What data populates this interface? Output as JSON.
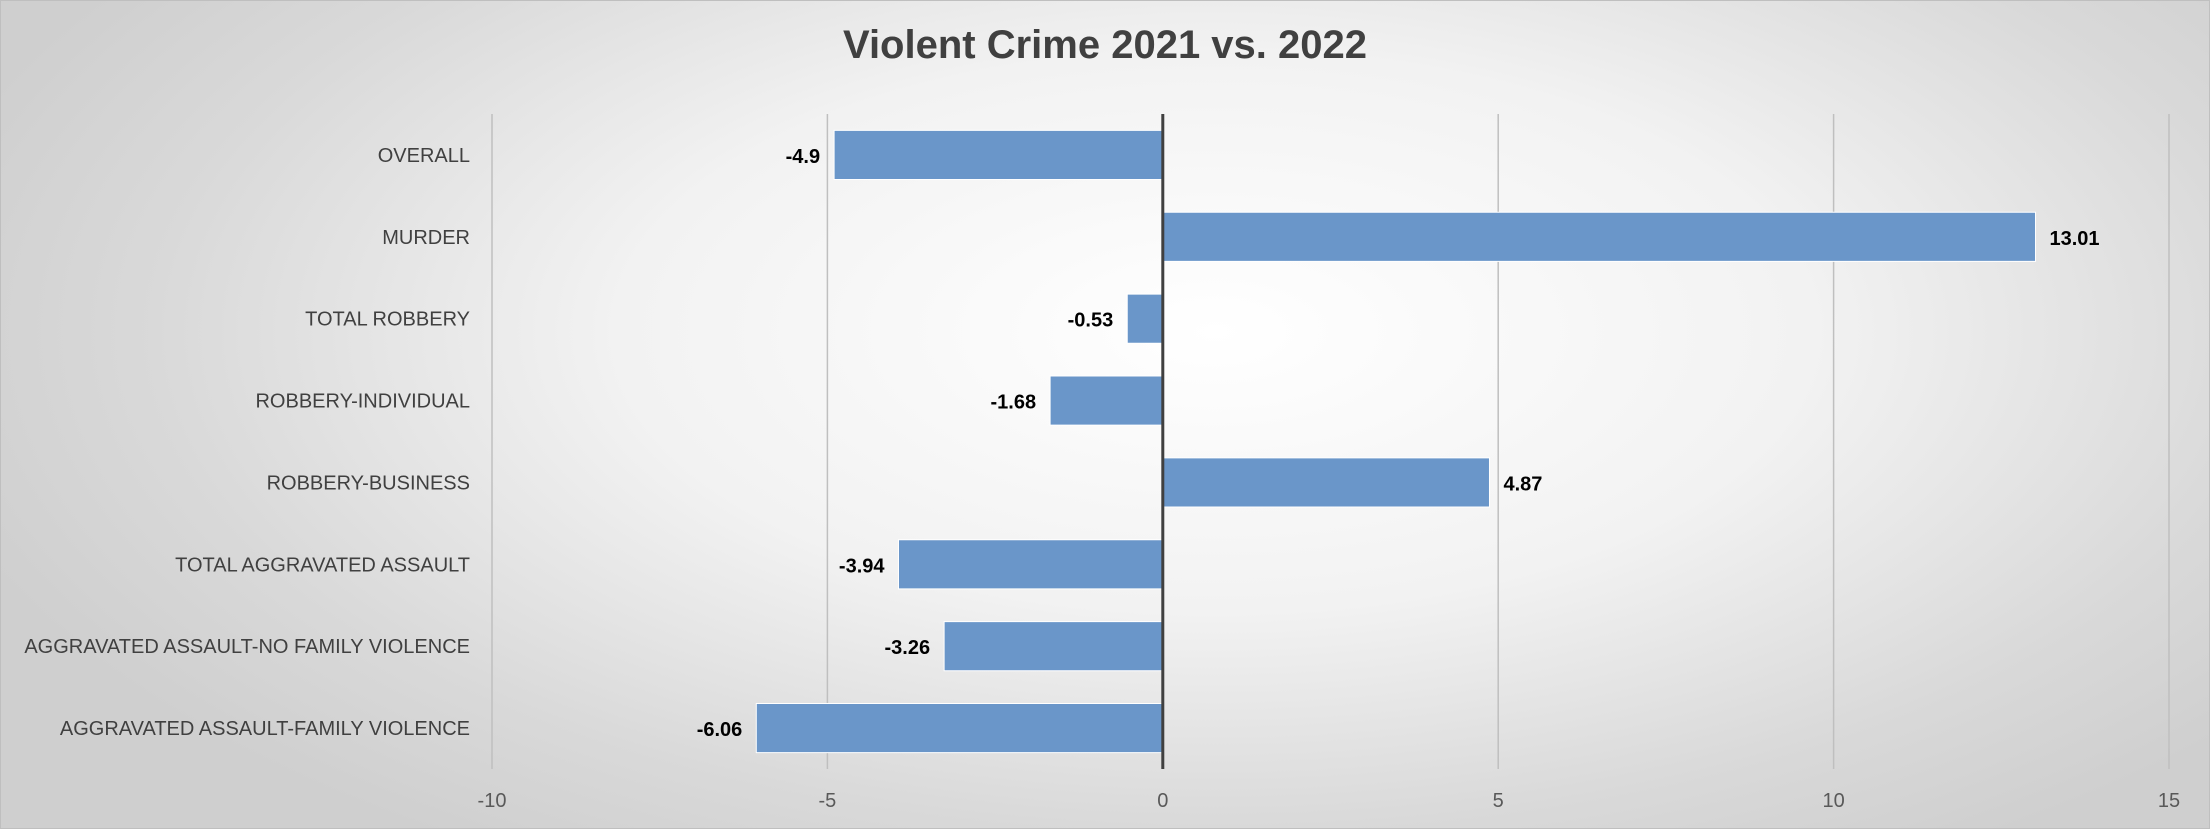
{
  "chart_data": {
    "type": "bar",
    "orientation": "horizontal",
    "title": "Violent Crime 2021 vs. 2022",
    "xlabel": "",
    "ylabel": "",
    "xlim": [
      -10,
      15
    ],
    "xticks": [
      -10,
      -5,
      0,
      5,
      10,
      15
    ],
    "grid": true,
    "legend": "none",
    "bar_color": "#6a96c9",
    "categories": [
      "OVERALL",
      "MURDER",
      "TOTAL ROBBERY",
      "ROBBERY-INDIVIDUAL",
      "ROBBERY-BUSINESS",
      "TOTAL AGGRAVATED ASSAULT",
      "AGGRAVATED ASSAULT-NO FAMILY VIOLENCE",
      "AGGRAVATED ASSAULT-FAMILY VIOLENCE"
    ],
    "values": [
      -4.9,
      13.01,
      -0.53,
      -1.68,
      4.87,
      -3.94,
      -3.26,
      -6.06
    ],
    "data_labels": [
      "-4.9",
      "13.01",
      "-0.53",
      "-1.68",
      "4.87",
      "-3.94",
      "-3.26",
      "-6.06"
    ]
  }
}
